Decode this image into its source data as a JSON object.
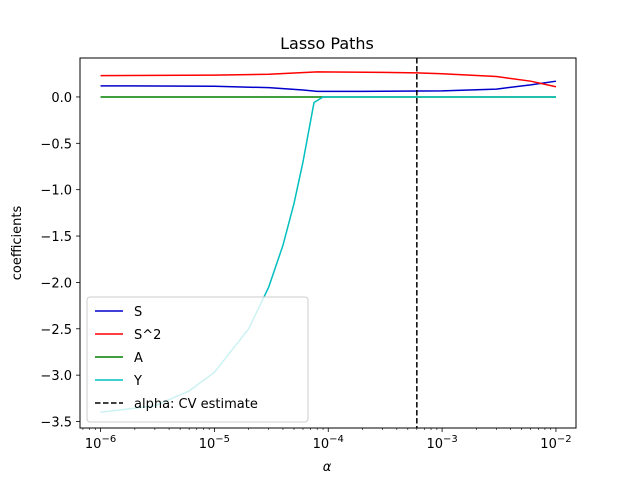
{
  "chart_data": {
    "type": "line",
    "title": "Lasso Paths",
    "xlabel": "α",
    "ylabel": "coefficients",
    "xscale": "log",
    "xlim": [
      6.6e-07,
      0.015
    ],
    "ylim": [
      -3.57,
      0.42
    ],
    "xticks": [
      1e-06,
      1e-05,
      0.0001,
      0.001,
      0.01
    ],
    "xtick_labels": [
      {
        "base": "10",
        "exp": "−6"
      },
      {
        "base": "10",
        "exp": "−5"
      },
      {
        "base": "10",
        "exp": "−4"
      },
      {
        "base": "10",
        "exp": "−3"
      },
      {
        "base": "10",
        "exp": "−2"
      }
    ],
    "yticks": [
      0.0,
      -0.5,
      -1.0,
      -1.5,
      -2.0,
      -2.5,
      -3.0,
      -3.5
    ],
    "ytick_labels": [
      "0.0",
      "−0.5",
      "−1.0",
      "−1.5",
      "−2.0",
      "−2.5",
      "−3.0",
      "−3.5"
    ],
    "grid": false,
    "legend_position": "lower-left",
    "series": [
      {
        "name": "S",
        "color": "#0000cc",
        "x": [
          1e-06,
          1e-05,
          3e-05,
          6e-05,
          8e-05,
          0.0002,
          0.001,
          0.003,
          0.006,
          0.01
        ],
        "y": [
          0.12,
          0.115,
          0.1,
          0.075,
          0.06,
          0.06,
          0.065,
          0.085,
          0.13,
          0.17
        ]
      },
      {
        "name": "S^2",
        "color": "#ff0000",
        "x": [
          1e-06,
          1e-05,
          3e-05,
          8e-05,
          0.0003,
          0.0006,
          0.001,
          0.003,
          0.006,
          0.01
        ],
        "y": [
          0.23,
          0.235,
          0.245,
          0.27,
          0.265,
          0.26,
          0.25,
          0.22,
          0.17,
          0.11
        ]
      },
      {
        "name": "A",
        "color": "#008000",
        "x": [
          1e-06,
          0.01
        ],
        "y": [
          0.0,
          0.0
        ]
      },
      {
        "name": "Y",
        "color": "#00bfbf",
        "x": [
          1e-06,
          3e-06,
          6e-06,
          1e-05,
          2e-05,
          3e-05,
          4e-05,
          5e-05,
          6e-05,
          7.5e-05,
          9e-05,
          0.0001,
          0.01
        ],
        "y": [
          -3.4,
          -3.33,
          -3.17,
          -2.97,
          -2.5,
          -2.05,
          -1.6,
          -1.15,
          -0.7,
          -0.06,
          0.0,
          0.0,
          0.0
        ]
      }
    ],
    "vlines": [
      {
        "name": "alpha: CV estimate",
        "x": 0.0006,
        "color": "#000000",
        "style": "dashed"
      }
    ]
  }
}
